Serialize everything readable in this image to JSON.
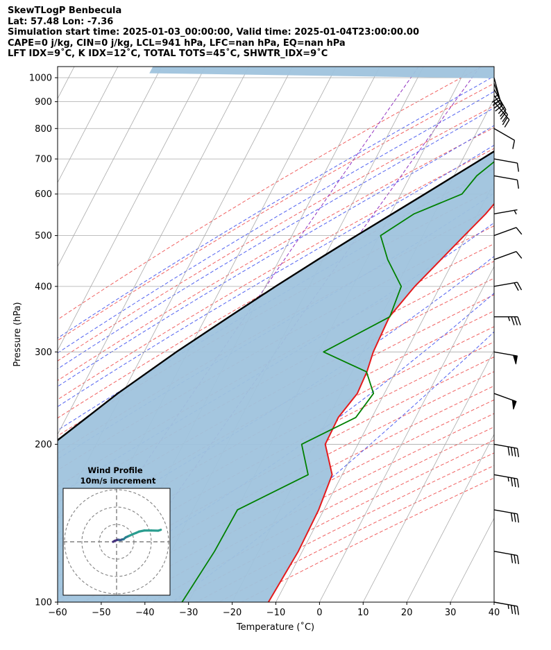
{
  "header": {
    "line1": "SkewTLogP Benbecula",
    "line2": "Lat: 57.48   Lon: -7.36",
    "line3": "Simulation start time: 2025-01-03_00:00:00, Valid time: 2025-01-04T23:00:00.00",
    "line4": "CAPE=0 j/kg, CIN=0 j/kg, LCL=941 hPa, LFC=nan hPa, EQ=nan hPa",
    "line5": "LFT IDX=9˚C, K IDX=12˚C, TOTAL TOTS=45˚C, SHWTR_IDX=9˚C"
  },
  "chart_data": {
    "type": "line",
    "subtype": "skew-t log-p",
    "xlabel": "Temperature (˚C)",
    "ylabel": "Pressure (hPa)",
    "xlim": [
      -60,
      40
    ],
    "ylim": [
      1050,
      100
    ],
    "x_ticks": [
      -60,
      -50,
      -40,
      -30,
      -20,
      -10,
      0,
      10,
      20,
      30,
      40
    ],
    "x_tick_labels": [
      "−60",
      "−50",
      "−40",
      "−30",
      "−20",
      "−10",
      "0",
      "10",
      "20",
      "30",
      "40"
    ],
    "y_ticks": [
      1000,
      900,
      800,
      700,
      600,
      500,
      400,
      300,
      200,
      100
    ],
    "y_tick_labels": [
      "1000",
      "900",
      "800",
      "700",
      "600",
      "500",
      "400",
      "300",
      "200",
      "100"
    ],
    "y_scale": "log",
    "grid": true,
    "colors": {
      "temperature": "#e41a1c",
      "dewpoint": "#008000",
      "parcel": "#000000",
      "cin_fill": "#9fc3dd",
      "isotherm": "#aaaaaa",
      "dry_adiabat": "#f06060",
      "moist_adiabat": "#5060f0",
      "mixing_ratio": "#9030c0",
      "wind_barb": "#000000",
      "hodograph": "#2a9d8f"
    },
    "series": [
      {
        "key": "temperature",
        "pressure": [
          1000,
          975,
          950,
          925,
          900,
          850,
          800,
          750,
          700,
          650,
          600,
          550,
          500,
          450,
          400,
          350,
          300,
          275,
          250,
          225,
          200,
          175,
          150,
          125,
          100
        ],
        "values": [
          7.0,
          5.0,
          3.8,
          2.7,
          1.6,
          -0.6,
          -2.5,
          -3.5,
          -4.5,
          -5.4,
          -6.7,
          -8.2,
          -10.5,
          -13.0,
          -15.8,
          -18.0,
          -17.5,
          -16.6,
          -16.2,
          -17.7,
          -17.5,
          -12.3,
          -11.2,
          -10.9,
          -11.7
        ]
      },
      {
        "key": "dewpoint",
        "pressure": [
          1000,
          975,
          950,
          925,
          900,
          850,
          800,
          750,
          700,
          650,
          600,
          550,
          500,
          450,
          400,
          350,
          300,
          275,
          250,
          225,
          200,
          175,
          150,
          125,
          100
        ],
        "values": [
          1.6,
          1.8,
          1.5,
          1.0,
          0.2,
          -4.0,
          -6.0,
          -9.3,
          -12.0,
          -14.8,
          -16.0,
          -24.6,
          -29.7,
          -25.2,
          -18.9,
          -17.9,
          -28.9,
          -16.7,
          -12.5,
          -13.7,
          -22.9,
          -17.8,
          -29.8,
          -30.1,
          -31.5
        ]
      },
      {
        "key": "parcel",
        "pressure": [
          1000,
          975,
          950,
          941,
          900,
          850,
          800,
          750,
          700,
          650,
          600,
          550,
          500,
          450,
          400,
          350,
          300,
          250,
          200,
          150,
          100
        ],
        "values": [
          5.5,
          3.3,
          1.2,
          0.4,
          -1.8,
          -4.8,
          -8.1,
          -11.7,
          -15.6,
          -19.9,
          -24.5,
          -29.6,
          -35.2,
          -41.2,
          -47.7,
          -54.7,
          -62.6,
          -71.1,
          -80.0,
          -89.7,
          -102.0
        ]
      }
    ],
    "wind_barbs": {
      "pressure": [
        100,
        125,
        150,
        175,
        200,
        250,
        300,
        350,
        400,
        450,
        500,
        550,
        650,
        700,
        800,
        900,
        925,
        950,
        975,
        1000
      ],
      "speed_kt": [
        35,
        30,
        30,
        35,
        40,
        50,
        50,
        35,
        20,
        10,
        10,
        5,
        10,
        10,
        10,
        20,
        20,
        25,
        30,
        25
      ],
      "direction_deg": [
        280,
        280,
        280,
        280,
        280,
        290,
        280,
        270,
        260,
        250,
        250,
        260,
        280,
        280,
        300,
        320,
        325,
        330,
        340,
        345
      ]
    },
    "hodograph": {
      "title": "Wind Profile",
      "subtitle": "10m/s increment",
      "ring_step": 10,
      "rings": [
        10,
        20,
        30
      ],
      "u": [
        -2,
        -1,
        0,
        0.7,
        1.3,
        2.4,
        3.1,
        4.1,
        5.2,
        7.2,
        9.4,
        11.2,
        13.0,
        16.0,
        20.0,
        24.0,
        25.5
      ],
      "v": [
        0,
        0.6,
        0.9,
        1.2,
        1.1,
        1.0,
        1.3,
        1.5,
        2.5,
        3.4,
        4.4,
        5.1,
        5.9,
        6.5,
        6.5,
        6.4,
        6.9
      ]
    }
  }
}
